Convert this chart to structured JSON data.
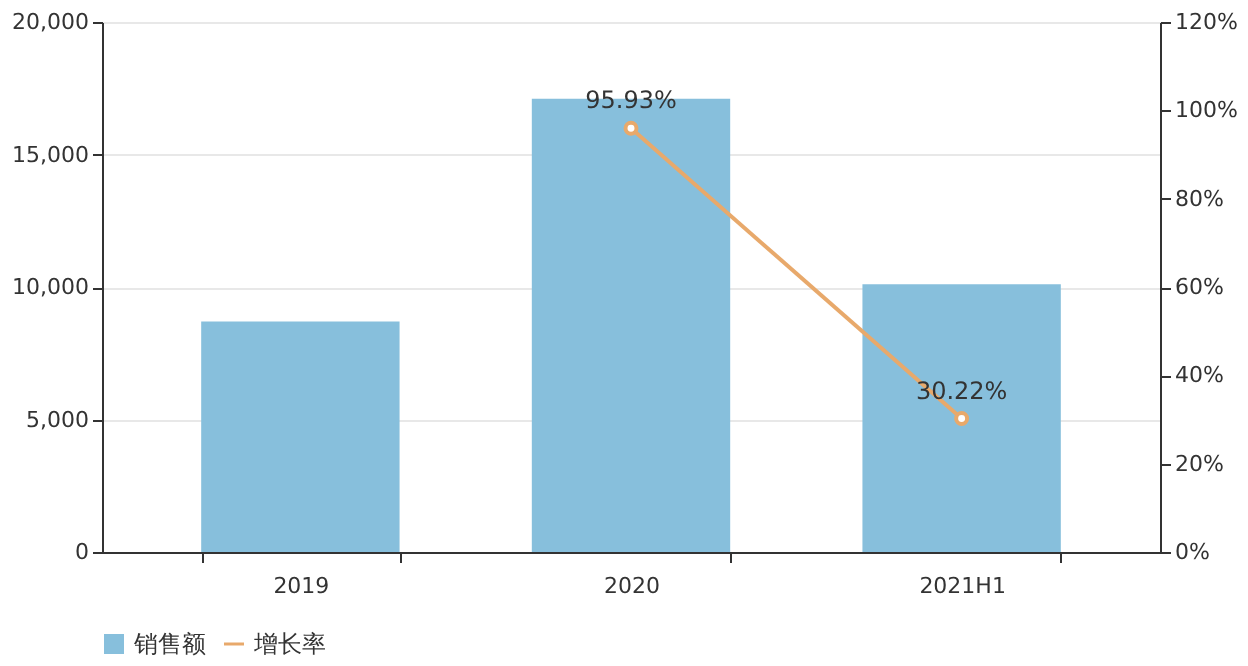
{
  "chart_data": {
    "type": "bar",
    "categories": [
      "2019",
      "2020",
      "2021H1"
    ],
    "series": [
      {
        "name": "销售额",
        "color": "#87bfdc",
        "values": [
          8700,
          17100,
          10100
        ]
      },
      {
        "name": "增长率",
        "type": "line",
        "axis": "y2",
        "color": "#e8a96b",
        "values": [
          null,
          95.93,
          30.22
        ],
        "value_labels": [
          null,
          "95.93%",
          "30.22%"
        ],
        "marker": "circle"
      }
    ],
    "ylim": [
      0,
      20000
    ],
    "yticks": [
      {
        "value": 0,
        "label": "0"
      },
      {
        "value": 5000,
        "label": "5,000"
      },
      {
        "value": 10000,
        "label": "10,000"
      },
      {
        "value": 15000,
        "label": "15,000"
      },
      {
        "value": 20000,
        "label": "20,000"
      }
    ],
    "y2lim": [
      0,
      120
    ],
    "y2ticks": [
      {
        "value": 0,
        "label": "0%"
      },
      {
        "value": 20,
        "label": "20%"
      },
      {
        "value": 40,
        "label": "40%"
      },
      {
        "value": 60,
        "label": "60%"
      },
      {
        "value": 80,
        "label": "80%"
      },
      {
        "value": 100,
        "label": "100%"
      },
      {
        "value": 120,
        "label": "120%"
      }
    ],
    "grid": "y",
    "legend": "bottom"
  }
}
